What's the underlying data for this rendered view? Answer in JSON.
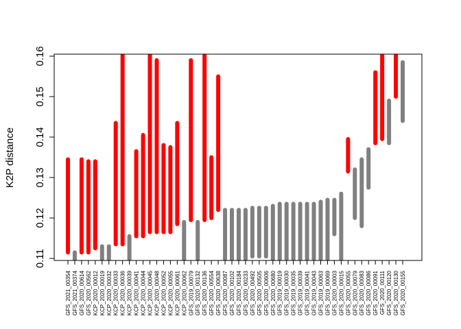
{
  "chart_data": {
    "type": "bar",
    "subtype": "range",
    "ylabel": "K2P distance",
    "xlabel": "",
    "ylim": [
      0.11,
      0.16
    ],
    "yticks": [
      0.11,
      0.12,
      0.13,
      0.14,
      0.15,
      0.16
    ],
    "grid": false,
    "colors": {
      "red": "#ff0000",
      "gray": "#808080"
    },
    "categories": [
      "GFS_2021_00354",
      "GFS_2021_00374",
      "GFS_2020_00614",
      "GFS_2020_00562",
      "KCP_2020_00012",
      "KCP_2020_00019",
      "KCP_2020_00032",
      "KCP_2020_00033",
      "KCP_2020_00036",
      "KCP_2020_00039",
      "KCP_2020_00041",
      "KCP_2020_00044",
      "KCP_2020_00045",
      "KCP_2020_00048",
      "KCP_2020_00052",
      "KCP_2020_00055",
      "KCP_2020_00061",
      "KCP_2020_00062",
      "GFS_2019_00079",
      "GFS_2020_00132",
      "GFS_2020_00136",
      "GFS_2020_00554",
      "GFS_2020_00638",
      "GFS_2020_00087",
      "GFS_2020_00102",
      "GFS_2020_00184",
      "GFS_2020_00233",
      "GFS_2020_00492",
      "GFS_2020_00505",
      "GFS_2020_00606",
      "GFS_2020_00680",
      "GFS_2019_00019",
      "GFS_2019_00030",
      "GFS_2019_00035",
      "GFS_2019_00039",
      "GFS_2019_00041",
      "GFS_2019_00043",
      "GFS_2019_00063",
      "GFS_2019_00069",
      "GFS_2020_00003",
      "GFS_2020_00015",
      "GFS_2020_00055",
      "GFS_2020_00079",
      "GFS_2020_00083",
      "GFS_2020_00086",
      "GFS_2020_00091",
      "GFS_2020_00111",
      "GFS_2020_00120",
      "GFS_2020_00130",
      "GFS_2020_00155"
    ],
    "low": [
      0.1115,
      0.1095,
      0.1115,
      0.1115,
      0.1125,
      0.1095,
      0.1095,
      0.1135,
      0.1135,
      0.1095,
      0.1155,
      0.1155,
      0.1165,
      0.1165,
      0.1165,
      0.1165,
      0.1185,
      0.1095,
      0.1195,
      0.1095,
      0.1195,
      0.12,
      0.122,
      0.1095,
      0.1095,
      0.1095,
      0.1095,
      0.1105,
      0.1105,
      0.1105,
      0.1095,
      0.1095,
      0.1095,
      0.1095,
      0.1095,
      0.1095,
      0.1095,
      0.1095,
      0.1095,
      0.116,
      0.1095,
      0.1315,
      0.12,
      0.118,
      0.1275,
      0.1385,
      0.1395,
      0.1385,
      0.15,
      0.144
    ],
    "high": [
      0.1345,
      0.1115,
      0.1345,
      0.134,
      0.134,
      0.113,
      0.113,
      0.1435,
      0.1605,
      0.1155,
      0.1365,
      0.1405,
      0.1605,
      0.159,
      0.138,
      0.1375,
      0.1435,
      0.119,
      0.159,
      0.119,
      0.1605,
      0.135,
      0.155,
      0.122,
      0.122,
      0.122,
      0.122,
      0.1225,
      0.1225,
      0.1225,
      0.123,
      0.1235,
      0.1235,
      0.1235,
      0.1235,
      0.1235,
      0.1235,
      0.124,
      0.1245,
      0.1245,
      0.126,
      0.1395,
      0.132,
      0.1345,
      0.137,
      0.156,
      0.1605,
      0.149,
      0.1605,
      0.1585
    ],
    "color": [
      "red",
      "gray",
      "red",
      "red",
      "red",
      "gray",
      "gray",
      "red",
      "red",
      "gray",
      "red",
      "red",
      "red",
      "red",
      "red",
      "red",
      "red",
      "gray",
      "red",
      "gray",
      "red",
      "red",
      "red",
      "gray",
      "gray",
      "gray",
      "gray",
      "gray",
      "gray",
      "gray",
      "gray",
      "gray",
      "gray",
      "gray",
      "gray",
      "gray",
      "gray",
      "gray",
      "gray",
      "gray",
      "gray",
      "red",
      "gray",
      "gray",
      "gray",
      "red",
      "red",
      "gray",
      "red",
      "gray"
    ]
  }
}
